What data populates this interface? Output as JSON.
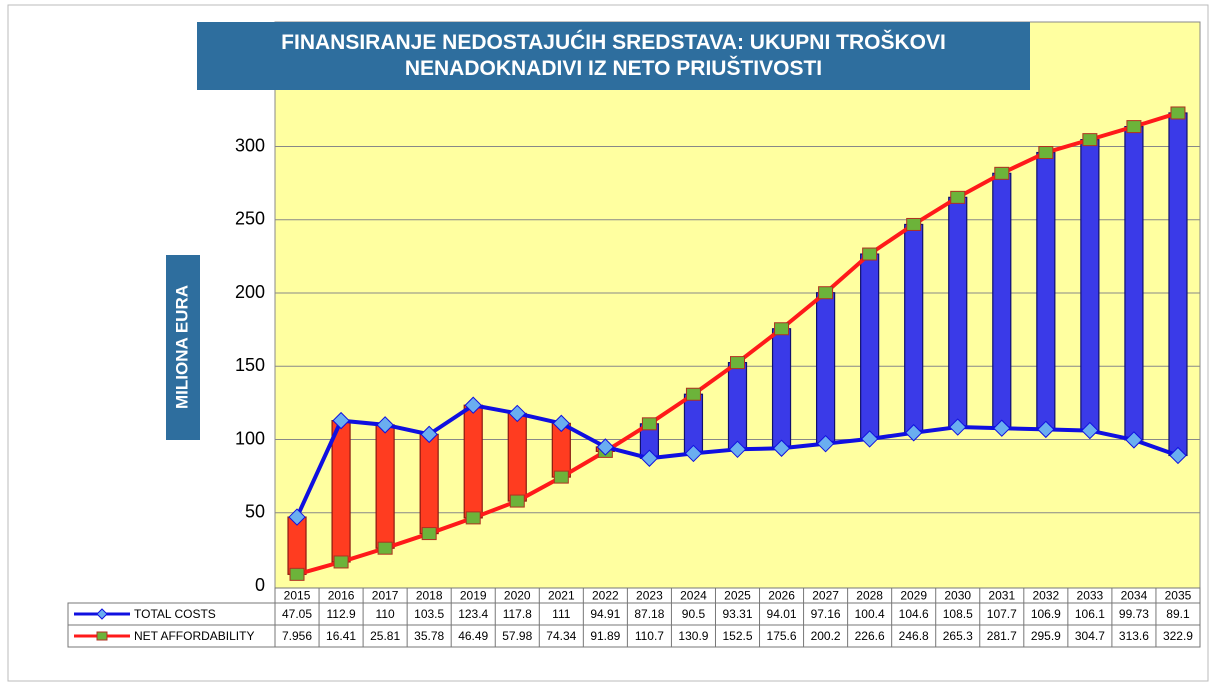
{
  "chart_data": {
    "type": "line",
    "title": "FINANSIRANJE NEDOSTAJUĆIH SREDSTAVA: UKUPNI TROŠKOVI NENADOKNADIVI IZ NETO PRIUŠTIVOSTI",
    "y_label": "MILIONA EURA",
    "categories": [
      "2015",
      "2016",
      "2017",
      "2018",
      "2019",
      "2020",
      "2021",
      "2022",
      "2023",
      "2024",
      "2025",
      "2026",
      "2027",
      "2028",
      "2029",
      "2030",
      "2031",
      "2032",
      "2033",
      "2034",
      "2035"
    ],
    "series": [
      {
        "name": "TOTAL COSTS",
        "color": "#1010e0",
        "marker_color": "#6aaef0",
        "values": [
          47.05,
          112.9,
          110,
          103.5,
          123.4,
          117.8,
          111,
          94.91,
          87.18,
          90.5,
          93.31,
          94.01,
          97.16,
          100.4,
          104.6,
          108.5,
          107.7,
          106.9,
          106.1,
          99.73,
          89.1
        ]
      },
      {
        "name": "NET AFFORDABILITY",
        "color": "#ff1a1a",
        "marker_color": "#6cb33a",
        "values": [
          7.956,
          16.41,
          25.81,
          35.78,
          46.49,
          57.98,
          74.34,
          91.89,
          110.7,
          130.9,
          152.5,
          175.6,
          200.2,
          226.6,
          246.8,
          265.3,
          281.7,
          295.9,
          304.7,
          313.6,
          322.9
        ]
      }
    ],
    "up_bar_color": "#3a3ae8",
    "down_bar_color": "#ff3c20",
    "ylim": [
      0,
      385
    ],
    "yticks": [
      0,
      50,
      100,
      150,
      200,
      250,
      300
    ],
    "grid": true
  }
}
